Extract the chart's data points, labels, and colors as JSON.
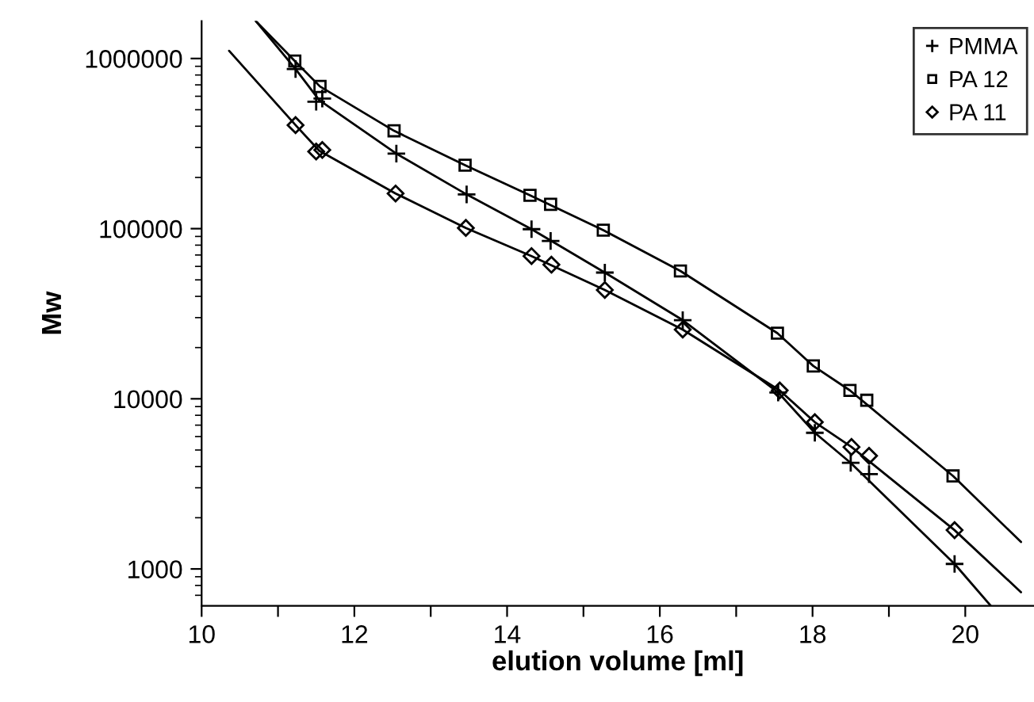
{
  "chart_data": {
    "type": "scatter",
    "xlabel": "elution volume [ml]",
    "ylabel": "Mw",
    "log": "y",
    "xlim": [
      10,
      20.9
    ],
    "ylim": [
      607,
      1660000
    ],
    "xticks": [
      10,
      {
        "value": 11,
        "label": null
      },
      12,
      {
        "value": 13,
        "label": null
      },
      14,
      {
        "value": 15,
        "label": null
      },
      16,
      {
        "value": 17,
        "label": null
      },
      18,
      {
        "value": 19,
        "label": null
      },
      20
    ],
    "yticks": [
      1000,
      10000,
      100000,
      1000000
    ],
    "grid": false,
    "legend": "top right",
    "series": [
      {
        "name": "PMMA",
        "marker": "cross",
        "color": "#000000",
        "x": [
          11.23,
          11.5,
          11.58,
          12.55,
          13.47,
          14.32,
          14.57,
          15.28,
          16.3,
          17.55,
          18.03,
          18.5,
          18.74,
          19.86
        ],
        "values": [
          867000,
          557000,
          581000,
          276000,
          159000,
          99300,
          84700,
          55200,
          29000,
          10900,
          6310,
          4200,
          3610,
          1070
        ]
      },
      {
        "name": "PA 12",
        "marker": "square",
        "color": "#000000",
        "x": [
          11.22,
          11.55,
          12.52,
          13.45,
          14.3,
          14.57,
          15.26,
          16.27,
          17.54,
          18.01,
          18.49,
          18.71,
          19.84
        ],
        "values": [
          967000,
          685000,
          376000,
          236000,
          157000,
          139000,
          98000,
          56400,
          24300,
          15600,
          11200,
          9800,
          3520
        ]
      },
      {
        "name": "PA 11",
        "marker": "diamond",
        "color": "#000000",
        "x": [
          11.23,
          11.5,
          11.58,
          12.54,
          13.46,
          14.32,
          14.58,
          15.28,
          16.3,
          17.57,
          18.03,
          18.51,
          18.74,
          19.86
        ],
        "values": [
          406000,
          284000,
          290000,
          161000,
          101000,
          69000,
          61400,
          43600,
          25500,
          11200,
          7290,
          5210,
          4620,
          1690
        ]
      },
      {
        "type": "line",
        "marker": "none",
        "color": "#000000",
        "x": [
          10.71,
          11.23,
          11.54,
          12.55,
          13.47,
          14.32,
          15.28,
          16.3,
          17.55,
          18.03,
          18.5,
          19.86,
          20.33
        ],
        "values": [
          1660000,
          867000,
          569000,
          276000,
          159000,
          99300,
          55200,
          29000,
          10900,
          6310,
          4200,
          1070,
          610
        ]
      },
      {
        "type": "line",
        "marker": "none",
        "color": "#000000",
        "x": [
          10.71,
          11.22,
          11.55,
          12.52,
          13.45,
          14.3,
          15.26,
          16.27,
          17.54,
          18.01,
          18.49,
          19.84,
          20.73
        ],
        "values": [
          1660000,
          967000,
          685000,
          376000,
          236000,
          157000,
          98000,
          56400,
          24300,
          15600,
          11200,
          3520,
          1440
        ]
      },
      {
        "type": "line",
        "marker": "none",
        "color": "#000000",
        "x": [
          10.36,
          11.23,
          11.54,
          12.54,
          13.46,
          14.32,
          15.28,
          16.3,
          17.57,
          18.03,
          18.51,
          19.86,
          20.73
        ],
        "values": [
          1110000,
          406000,
          287000,
          161000,
          101000,
          69000,
          43600,
          25500,
          11200,
          7290,
          5210,
          1690,
          730
        ]
      }
    ]
  }
}
